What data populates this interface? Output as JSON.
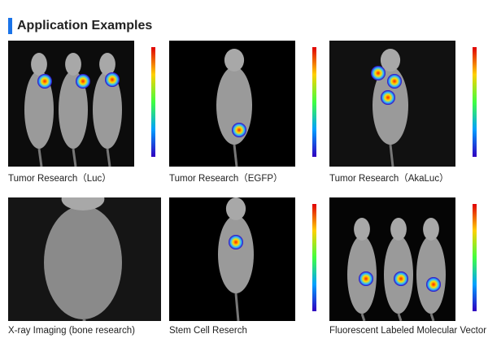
{
  "header": {
    "title": "Application Examples"
  },
  "panels": [
    {
      "caption": "Tumor Research（Luc）"
    },
    {
      "caption": "Tumor Research（EGFP）"
    },
    {
      "caption": "Tumor Research（AkaLuc）"
    },
    {
      "caption": "X-ray Imaging (bone research)"
    },
    {
      "caption": "Stem Cell Reserch"
    },
    {
      "caption": "Fluorescent Labeled Molecular Vector"
    }
  ]
}
